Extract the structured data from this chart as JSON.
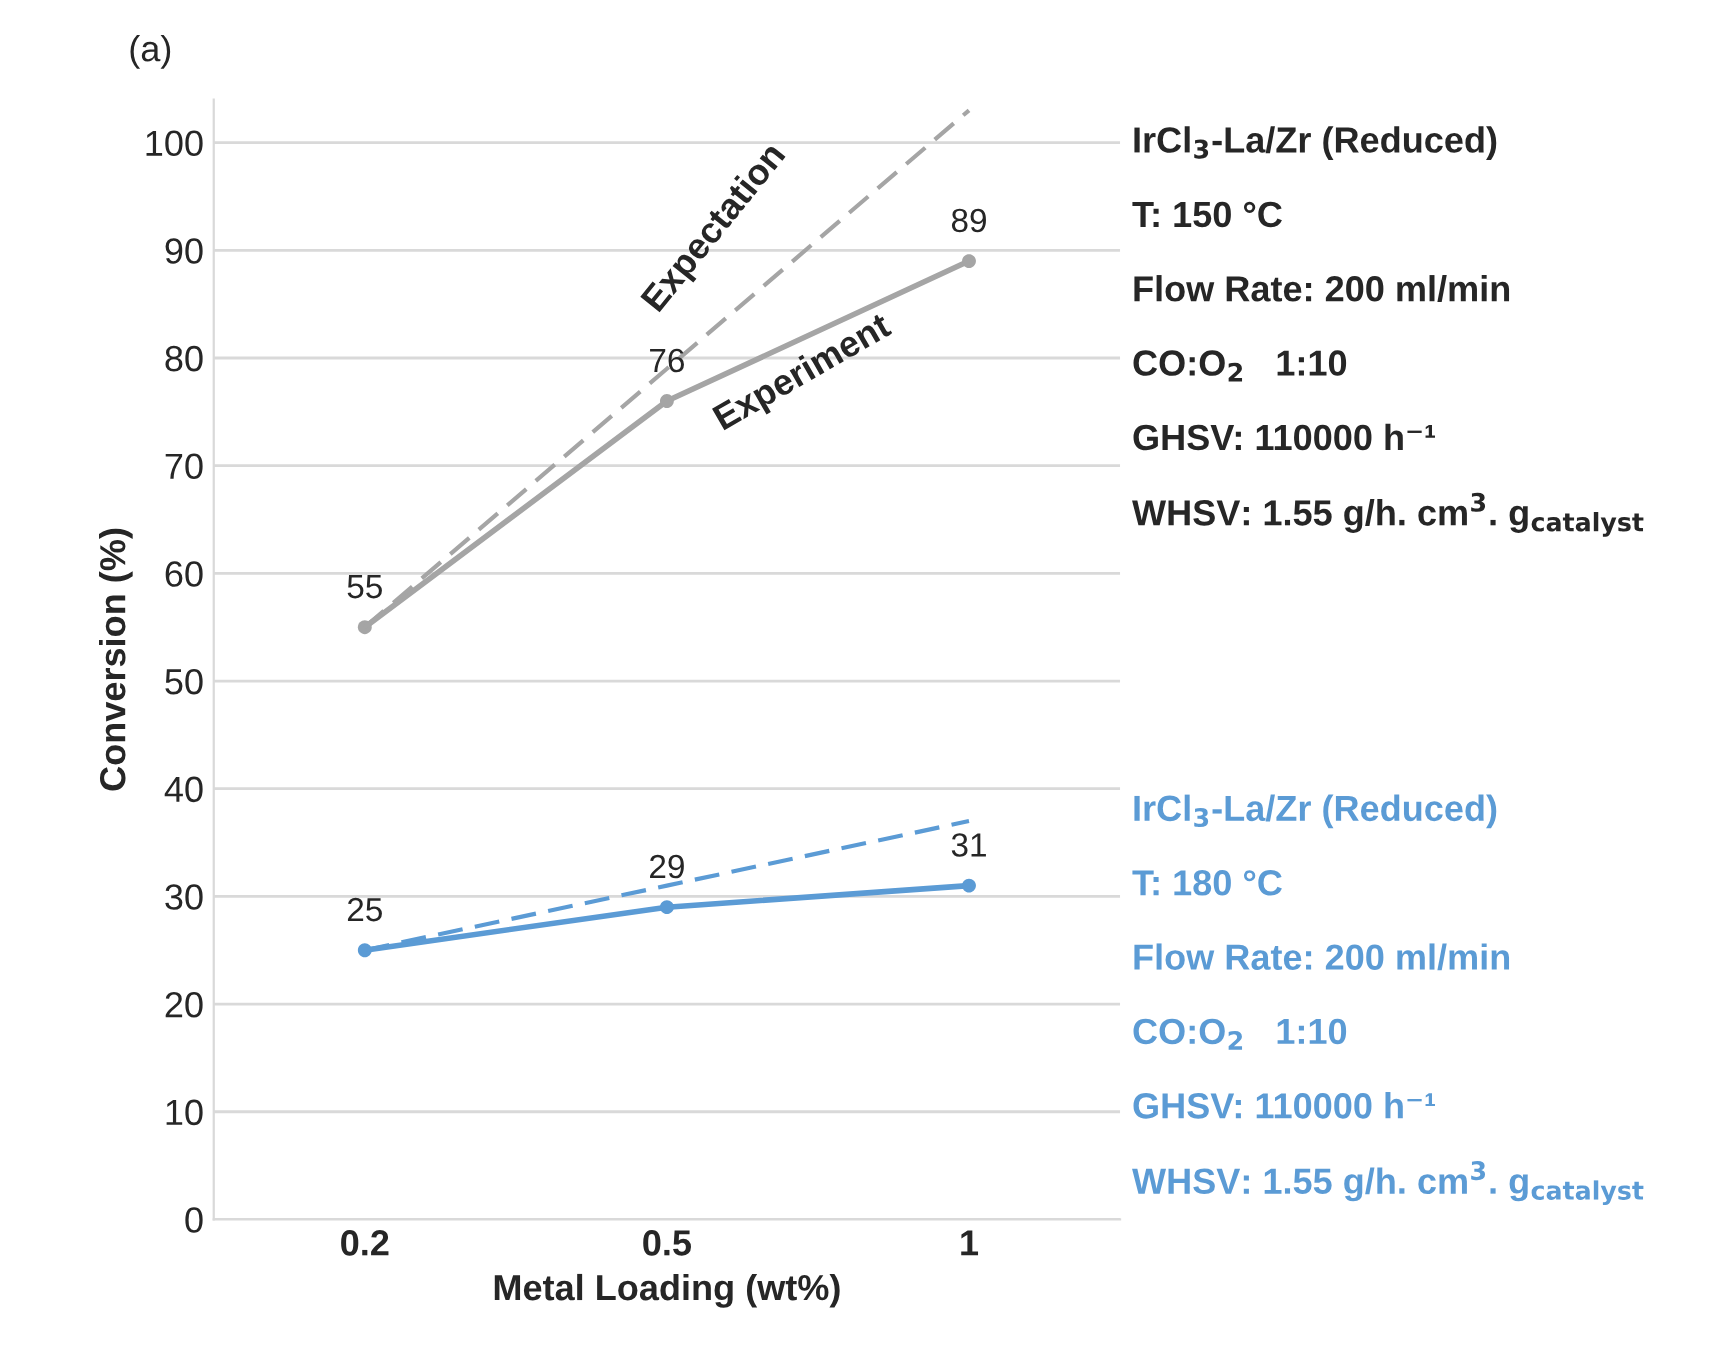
{
  "chart_data": {
    "type": "line",
    "xlabel": "Metal Loading (wt%)",
    "ylabel": "Conversion (%)",
    "categories": [
      "0.2",
      "0.5",
      "1"
    ],
    "series": [
      {
        "color": "#a5a5a5",
        "values": [
          55,
          76,
          89
        ],
        "value_labels": [
          "55",
          "76",
          "89"
        ],
        "marker": "circle",
        "line_style": "solid"
      },
      {
        "color": "#5b9bd5",
        "values": [
          25,
          29,
          31
        ],
        "value_labels": [
          "25",
          "29",
          "31"
        ],
        "marker": "circle",
        "line_style": "solid"
      },
      {
        "color": "#a5a5a5",
        "values": [
          55,
          79,
          103
        ],
        "marker": "none",
        "line_style": "dashed"
      },
      {
        "color": "#5b9bd5",
        "values": [
          25,
          31,
          37
        ],
        "marker": "none",
        "line_style": "dashed"
      }
    ],
    "ylim": [
      0,
      104
    ],
    "yticks": [
      0,
      10,
      20,
      30,
      40,
      50,
      60,
      70,
      80,
      90,
      100
    ],
    "grid": "y",
    "legend": false,
    "annotations": [
      "(a)",
      "Expectation",
      "Experiment",
      "IrCl$_{3}$-La/Zr (Reduced)",
      "T: 150 °C",
      "Flow Rate: 200 ml/min",
      "CO:O$_{2}$   1:10",
      "GHSV: 110000 h⁻¹",
      "WHSV: 1.55 g/h. cm$^{3}$. g$_{catalyst}$",
      "IrCl$_{3}$-La/Zr (Reduced)",
      "T: 180 °C",
      "Flow Rate: 200 ml/min",
      "CO:O$_{2}$   1:10",
      "GHSV: 110000 h⁻¹",
      "WHSV: 1.55 g/h. cm$^{3}$. g$_{catalyst}$"
    ]
  }
}
